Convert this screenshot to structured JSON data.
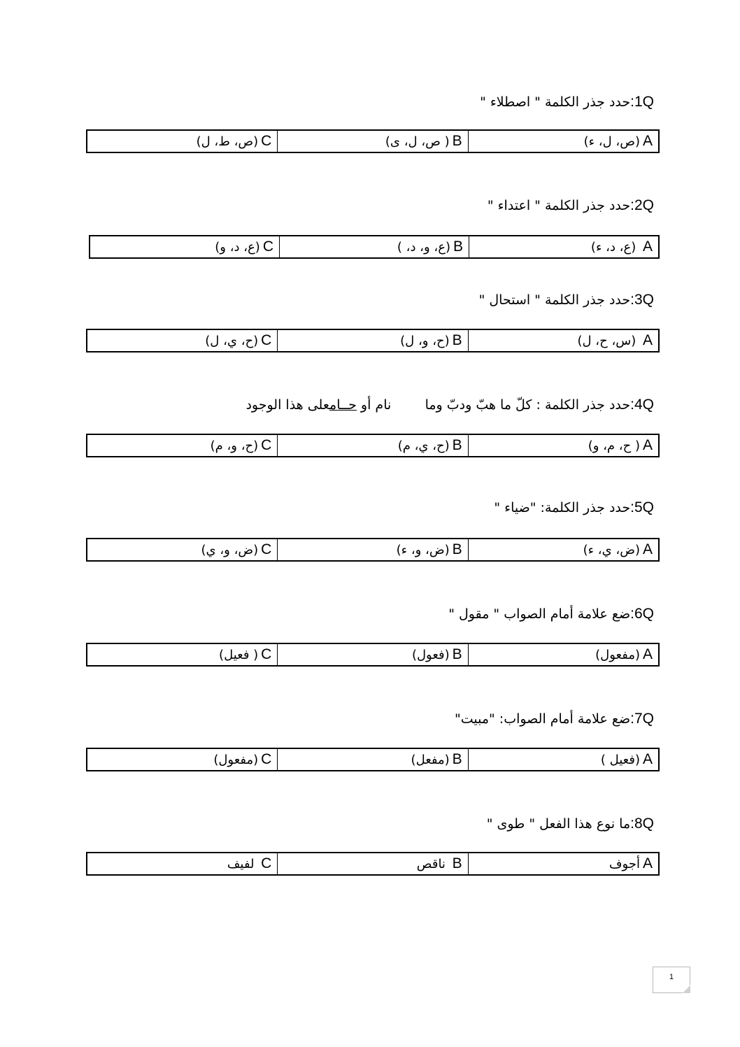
{
  "questions": [
    {
      "num": "1Q",
      "text": "حدد جذر الكلمة \" اصطلاء \"",
      "options": [
        {
          "letter": "A",
          "text": "(ص، ل، ء)"
        },
        {
          "letter": "B",
          "text": "( ص، ل، ى)"
        },
        {
          "letter": "C",
          "text": "(ص، ط، ل)"
        }
      ]
    },
    {
      "num": "2Q",
      "text": "حدد جذر الكلمة \" اعتداء \"",
      "options": [
        {
          "letter": "A",
          "text": " (ع، د، ء)"
        },
        {
          "letter": "B",
          "text": "(ع، و، د، )"
        },
        {
          "letter": "C",
          "text": "(ع، د، و)"
        }
      ]
    },
    {
      "num": "3Q",
      "text": "حدد جذر الكلمة \" استحال \"",
      "options": [
        {
          "letter": "A",
          "text": " (س، ح، ل)"
        },
        {
          "letter": "B",
          "text": "(ح، و، ل)"
        },
        {
          "letter": "C",
          "text": "(ح، ي، ل)"
        }
      ]
    },
    {
      "num": "4Q",
      "text_pre": "حدد جذر الكلمة : كلّ ما هبّ ودبّ وما        نام أو ",
      "text_underlined": "حــام",
      "text_post": "على هذا الوجود",
      "options": [
        {
          "letter": "A",
          "text": "( ح، م، و)"
        },
        {
          "letter": "B",
          "text": "(ح، ي، م)"
        },
        {
          "letter": "C",
          "text": "(ح، و، م)"
        }
      ]
    },
    {
      "num": "5Q",
      "text": "حدد جذر الكلمة: \"ضياء \"",
      "options": [
        {
          "letter": "A",
          "text": "(ض، ي، ء)"
        },
        {
          "letter": "B",
          "text": "(ض، و، ء)"
        },
        {
          "letter": "C",
          "text": "(ض، و، ي)"
        }
      ]
    },
    {
      "num": "6Q",
      "text": "ضع علامة أمام الصواب \" مقول \"",
      "options": [
        {
          "letter": "A",
          "text": "(مفعول)"
        },
        {
          "letter": "B",
          "text": "(فعول)"
        },
        {
          "letter": "C",
          "text": "( فعيل)"
        }
      ]
    },
    {
      "num": "7Q",
      "text": "ضع علامة أمام الصواب: \"مبيت\"",
      "options": [
        {
          "letter": "A",
          "text": "(فعيل )"
        },
        {
          "letter": "B",
          "text": "(مفعل)"
        },
        {
          "letter": "C",
          "text": "(مفعول)"
        }
      ]
    },
    {
      "num": "8Q",
      "text": "ما نوع هذا الفعل \" طوى \"",
      "options": [
        {
          "letter": "A",
          "text": "أجوف"
        },
        {
          "letter": "B",
          "text": " ناقص"
        },
        {
          "letter": "C",
          "text": " لفيف"
        }
      ]
    }
  ],
  "page_number": "1"
}
